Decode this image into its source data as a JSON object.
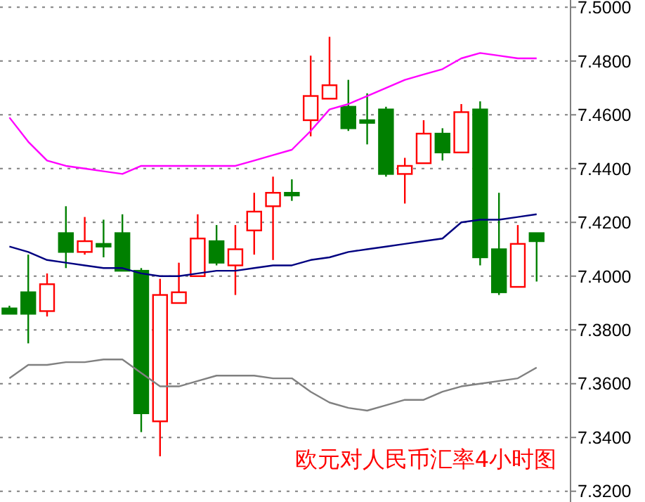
{
  "chart_data": {
    "type": "candlestick",
    "categories": [
      null,
      null,
      null,
      null,
      null,
      null,
      null,
      null,
      null,
      null,
      null,
      null,
      null,
      null,
      null,
      null,
      null,
      null,
      null,
      null,
      null,
      null,
      null,
      null,
      null,
      null,
      null,
      null,
      null
    ],
    "ohlc": [
      [
        7.388,
        7.389,
        7.386,
        7.386
      ],
      [
        7.394,
        7.408,
        7.375,
        7.386
      ],
      [
        7.387,
        7.401,
        7.385,
        7.397
      ],
      [
        7.416,
        7.426,
        7.403,
        7.409
      ],
      [
        7.409,
        7.422,
        7.408,
        7.413
      ],
      [
        7.412,
        7.421,
        7.407,
        7.411
      ],
      [
        7.416,
        7.423,
        7.402,
        7.402
      ],
      [
        7.402,
        7.403,
        7.342,
        7.349
      ],
      [
        7.346,
        7.399,
        7.333,
        7.393
      ],
      [
        7.39,
        7.405,
        7.39,
        7.394
      ],
      [
        7.4,
        7.423,
        7.4,
        7.414
      ],
      [
        7.413,
        7.419,
        7.404,
        7.405
      ],
      [
        7.404,
        7.419,
        7.393,
        7.41
      ],
      [
        7.417,
        7.431,
        7.408,
        7.424
      ],
      [
        7.426,
        7.437,
        7.406,
        7.431
      ],
      [
        7.431,
        7.436,
        7.428,
        7.43
      ],
      [
        7.458,
        7.482,
        7.452,
        7.467
      ],
      [
        7.466,
        7.489,
        7.466,
        7.471
      ],
      [
        7.463,
        7.473,
        7.454,
        7.455
      ],
      [
        7.458,
        7.468,
        7.449,
        7.457
      ],
      [
        7.462,
        7.463,
        7.437,
        7.438
      ],
      [
        7.438,
        7.444,
        7.427,
        7.441
      ],
      [
        7.442,
        7.458,
        7.442,
        7.453
      ],
      [
        7.453,
        7.455,
        7.443,
        7.446
      ],
      [
        7.446,
        7.464,
        7.446,
        7.461
      ],
      [
        7.462,
        7.465,
        7.404,
        7.407
      ],
      [
        7.41,
        7.431,
        7.393,
        7.394
      ],
      [
        7.396,
        7.419,
        7.396,
        7.412
      ],
      [
        7.416,
        7.416,
        7.398,
        7.413
      ]
    ],
    "series": [
      {
        "type": "line",
        "color": "#ff00ff",
        "values": [
          7.459,
          7.45,
          7.443,
          7.441,
          7.44,
          7.439,
          7.438,
          7.441,
          7.441,
          7.441,
          7.441,
          7.441,
          7.441,
          7.443,
          7.445,
          7.447,
          7.454,
          7.462,
          7.464,
          7.467,
          7.47,
          7.473,
          7.475,
          7.477,
          7.481,
          7.483,
          7.482,
          7.481,
          7.481
        ]
      },
      {
        "type": "line",
        "color": "#000080",
        "values": [
          7.411,
          7.409,
          7.406,
          7.405,
          7.404,
          7.403,
          7.403,
          7.401,
          7.4,
          7.4,
          7.401,
          7.402,
          7.402,
          7.403,
          7.404,
          7.404,
          7.406,
          7.407,
          7.409,
          7.41,
          7.411,
          7.412,
          7.413,
          7.414,
          7.42,
          7.421,
          7.421,
          7.422,
          7.423
        ]
      },
      {
        "type": "line",
        "color": "#808080",
        "values": [
          7.362,
          7.367,
          7.367,
          7.368,
          7.368,
          7.369,
          7.369,
          7.364,
          7.359,
          7.359,
          7.361,
          7.363,
          7.363,
          7.363,
          7.362,
          7.362,
          7.357,
          7.353,
          7.351,
          7.35,
          7.352,
          7.354,
          7.354,
          7.357,
          7.359,
          7.36,
          7.361,
          7.362,
          7.366
        ]
      }
    ],
    "ylim": [
      7.316,
      7.5027
    ],
    "yticks": [
      {
        "value": 7.32,
        "label": "7.3200"
      },
      {
        "value": 7.34,
        "label": "7.3400"
      },
      {
        "value": 7.36,
        "label": "7.3600"
      },
      {
        "value": 7.38,
        "label": "7.3800"
      },
      {
        "value": 7.4,
        "label": "7.4000"
      },
      {
        "value": 7.42,
        "label": "7.4200"
      },
      {
        "value": 7.44,
        "label": "7.4400"
      },
      {
        "value": 7.46,
        "label": "7.4600"
      },
      {
        "value": 7.48,
        "label": "7.4800"
      },
      {
        "value": 7.5,
        "label": "7.5000"
      }
    ],
    "grid": "y",
    "tick_labels": "y",
    "line_style": "solid",
    "annotations": [
      "欧元对人民币汇率4小时图"
    ]
  }
}
